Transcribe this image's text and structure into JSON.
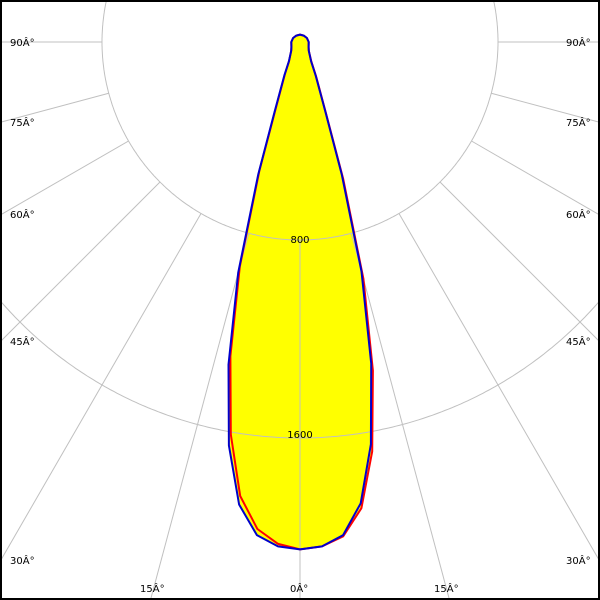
{
  "chart_data": {
    "type": "polar",
    "title": "",
    "radial_ticks": [
      800,
      1600
    ],
    "radial_tick_labels": [
      "800",
      "1600"
    ],
    "radial_range": [
      0,
      2424
    ],
    "angle_ticks": [
      0,
      15,
      30,
      45,
      60,
      75,
      90
    ],
    "angle_labels": {
      "left": [
        "0Â°",
        "15Â°",
        "30Â°",
        "45Â°",
        "60Â°",
        "75Â°",
        "90Â°"
      ],
      "right": [
        "15Â°",
        "30Â°",
        "45Â°",
        "60Â°",
        "75Â°",
        "90Â°"
      ]
    },
    "grid": true,
    "fill_color": "#ffff00",
    "series": [
      {
        "color": "#ff0000",
        "angles": [
          -180,
          -150,
          -120,
          -90,
          -60,
          -45,
          -30,
          -25,
          -20,
          -17.5,
          -15,
          -12.5,
          -10,
          -7.5,
          -5,
          -2.5,
          0,
          2.5,
          5,
          7.5,
          10,
          12.5,
          15,
          17.5,
          20,
          25,
          30,
          45,
          60,
          90,
          120,
          150,
          180
        ],
        "values": [
          30,
          30,
          32,
          35,
          40,
          50,
          88,
          145,
          290,
          545,
          940,
          1300,
          1610,
          1850,
          1975,
          2030,
          2050,
          2040,
          2005,
          1900,
          1680,
          1360,
          990,
          580,
          310,
          155,
          92,
          50,
          40,
          35,
          32,
          30,
          30
        ]
      },
      {
        "color": "#0000cc",
        "angles": [
          -180,
          -150,
          -120,
          -90,
          -60,
          -45,
          -30,
          -25,
          -20,
          -17.5,
          -15,
          -12.5,
          -10,
          -7.5,
          -5,
          -2.5,
          0,
          2.5,
          5,
          7.5,
          10,
          12.5,
          15,
          17.5,
          20,
          25,
          30,
          45,
          60,
          90,
          120,
          150,
          180
        ],
        "values": [
          30,
          30,
          32,
          35,
          40,
          50,
          90,
          150,
          300,
          560,
          965,
          1335,
          1655,
          1885,
          2000,
          2040,
          2050,
          2040,
          2000,
          1880,
          1650,
          1330,
          960,
          560,
          300,
          150,
          90,
          50,
          40,
          35,
          32,
          30,
          30
        ]
      }
    ]
  }
}
